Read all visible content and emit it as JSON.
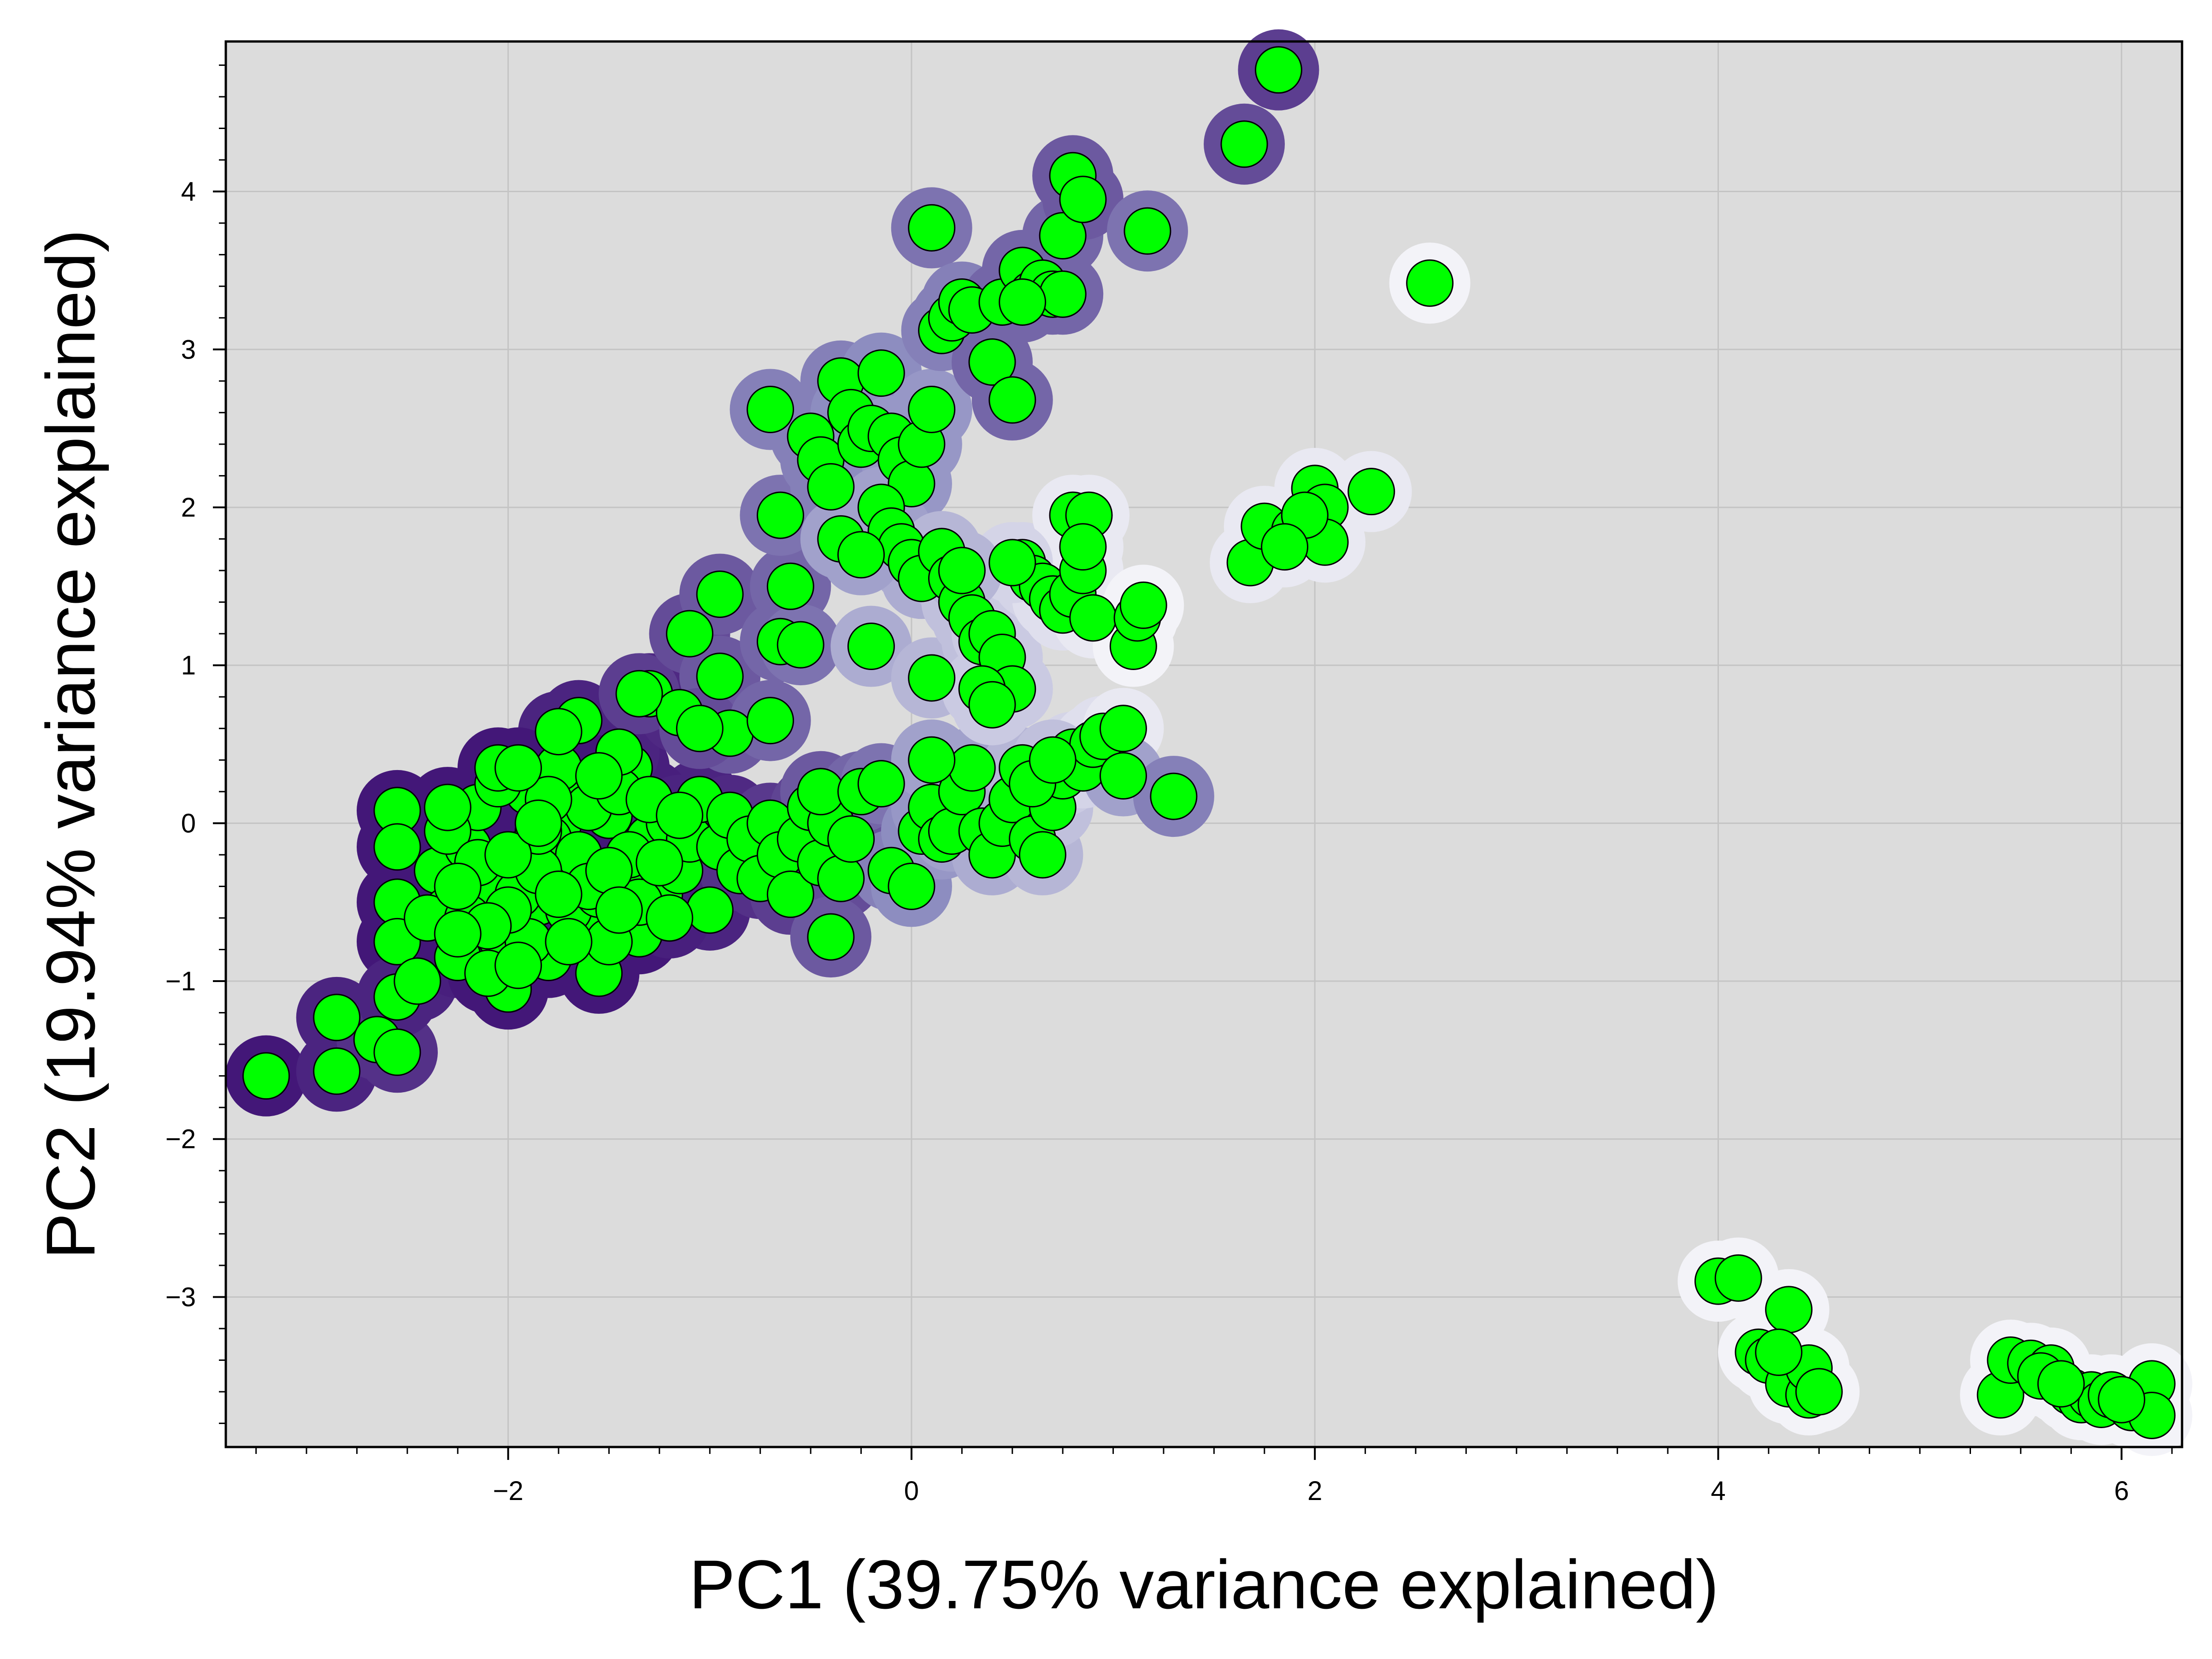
{
  "chart_data": {
    "type": "scatter",
    "title": "",
    "xlabel": "PC1 (39.75% variance explained)",
    "ylabel": "PC2 (19.94% variance explained)",
    "xlim": [
      -3.4,
      6.3
    ],
    "ylim": [
      -3.95,
      4.95
    ],
    "x_ticks": [
      -2,
      0,
      2,
      4,
      6
    ],
    "y_ticks": [
      -3,
      -2,
      -1,
      0,
      1,
      2,
      3,
      4
    ],
    "x_tick_labels": [
      "−2",
      "0",
      "2",
      "4",
      "6"
    ],
    "y_tick_labels": [
      "−3",
      "−2",
      "−1",
      "0",
      "1",
      "2",
      "3",
      "4"
    ],
    "grid": true,
    "legend": "none",
    "colors": {
      "background": "#dcdcdc",
      "grid": "#c4c4c4",
      "marker_fill": "#00ff00",
      "marker_edge": "#000000",
      "halo_dark": "#3b0a70",
      "halo_mid": "#8d8dc0",
      "halo_light": "#f3f3f8"
    },
    "points": [
      [
        -3.2,
        -1.6,
        0.05
      ],
      [
        -2.85,
        -1.23,
        0.1
      ],
      [
        -2.85,
        -1.57,
        0.1
      ],
      [
        -2.65,
        -1.37,
        0.15
      ],
      [
        -2.55,
        -1.45,
        0.15
      ],
      [
        -2.55,
        0.08,
        0.05
      ],
      [
        -2.55,
        -0.15,
        0.05
      ],
      [
        -2.55,
        -0.5,
        0.05
      ],
      [
        -2.55,
        -0.75,
        0.05
      ],
      [
        -2.55,
        -1.1,
        0.1
      ],
      [
        -2.45,
        -1.0,
        0.1
      ],
      [
        -2.35,
        -0.3,
        0.05
      ],
      [
        -2.3,
        -0.55,
        0.05
      ],
      [
        -2.25,
        -0.85,
        0.08
      ],
      [
        -2.2,
        -0.15,
        0.05
      ],
      [
        -2.15,
        0.1,
        0.05
      ],
      [
        -2.1,
        -0.4,
        0.05
      ],
      [
        -2.05,
        -0.7,
        0.05
      ],
      [
        -2.0,
        -1.05,
        0.05
      ],
      [
        -1.95,
        -0.2,
        0.05
      ],
      [
        -1.9,
        0.2,
        0.05
      ],
      [
        -1.85,
        -0.5,
        0.05
      ],
      [
        -1.8,
        -0.85,
        0.05
      ],
      [
        -1.75,
        0.0,
        0.05
      ],
      [
        -1.7,
        -0.3,
        0.05
      ],
      [
        -1.65,
        0.25,
        0.05
      ],
      [
        -1.6,
        -0.6,
        0.05
      ],
      [
        -1.55,
        -0.95,
        0.05
      ],
      [
        -1.5,
        0.05,
        0.05
      ],
      [
        -1.45,
        -0.35,
        0.05
      ],
      [
        -1.4,
        0.35,
        0.08
      ],
      [
        -1.35,
        -0.7,
        0.05
      ],
      [
        -1.3,
        -0.1,
        0.08
      ],
      [
        -1.25,
        -0.45,
        0.08
      ],
      [
        -1.2,
        0.0,
        0.1
      ],
      [
        -1.15,
        -0.3,
        0.1
      ],
      [
        -1.1,
        -0.1,
        0.1
      ],
      [
        -1.05,
        0.15,
        0.1
      ],
      [
        -1.0,
        -0.55,
        0.1
      ],
      [
        -2.4,
        -0.6,
        0.05
      ],
      [
        -2.3,
        -0.05,
        0.05
      ],
      [
        -2.2,
        -0.6,
        0.05
      ],
      [
        -2.1,
        -0.95,
        0.05
      ],
      [
        -2.05,
        0.25,
        0.05
      ],
      [
        -1.95,
        -0.45,
        0.05
      ],
      [
        -1.9,
        -0.75,
        0.05
      ],
      [
        -1.8,
        -0.1,
        0.05
      ],
      [
        -1.75,
        0.35,
        0.05
      ],
      [
        -1.7,
        -0.55,
        0.05
      ],
      [
        -1.65,
        -0.2,
        0.05
      ],
      [
        -1.6,
        0.1,
        0.05
      ],
      [
        -1.55,
        -0.45,
        0.05
      ],
      [
        -1.5,
        -0.75,
        0.05
      ],
      [
        -1.45,
        0.2,
        0.05
      ],
      [
        -1.4,
        -0.2,
        0.05
      ],
      [
        -1.35,
        -0.5,
        0.05
      ],
      [
        -1.3,
        0.15,
        0.08
      ],
      [
        -1.25,
        -0.25,
        0.08
      ],
      [
        -1.2,
        -0.6,
        0.08
      ],
      [
        -1.15,
        0.05,
        0.1
      ],
      [
        -2.15,
        -0.25,
        0.05
      ],
      [
        -2.0,
        -0.55,
        0.05
      ],
      [
        -1.85,
        -0.3,
        0.05
      ],
      [
        -1.8,
        0.15,
        0.05
      ],
      [
        -1.7,
        -0.75,
        0.05
      ],
      [
        -1.95,
        -0.9,
        0.05
      ],
      [
        -2.1,
        -0.65,
        0.05
      ],
      [
        -2.25,
        -0.4,
        0.05
      ],
      [
        -1.6,
        -0.4,
        0.05
      ],
      [
        -1.5,
        -0.3,
        0.05
      ],
      [
        -2.3,
        0.1,
        0.05
      ],
      [
        -1.45,
        -0.55,
        0.05
      ],
      [
        -1.85,
        -0.05,
        0.05
      ],
      [
        -2.0,
        -0.2,
        0.05
      ],
      [
        -1.75,
        -0.45,
        0.05
      ],
      [
        -1.65,
        0.65,
        0.1
      ],
      [
        -1.75,
        0.58,
        0.1
      ],
      [
        -1.45,
        0.45,
        0.1
      ],
      [
        -1.3,
        0.82,
        0.12
      ],
      [
        -1.15,
        0.7,
        0.12
      ],
      [
        -2.05,
        0.35,
        0.05
      ],
      [
        -1.95,
        0.35,
        0.05
      ],
      [
        -1.55,
        0.3,
        0.05
      ],
      [
        -1.85,
        0.0,
        0.05
      ],
      [
        -2.25,
        -0.7,
        0.05
      ],
      [
        -0.95,
        -0.15,
        0.12
      ],
      [
        -0.9,
        0.05,
        0.12
      ],
      [
        -0.85,
        -0.3,
        0.15
      ],
      [
        -0.8,
        -0.1,
        0.15
      ],
      [
        -0.75,
        -0.35,
        0.15
      ],
      [
        -0.7,
        0.0,
        0.18
      ],
      [
        -0.65,
        -0.2,
        0.18
      ],
      [
        -0.6,
        -0.45,
        0.2
      ],
      [
        -0.55,
        -0.1,
        0.2
      ],
      [
        -0.5,
        0.1,
        0.22
      ],
      [
        -0.45,
        -0.25,
        0.22
      ],
      [
        -0.4,
        0.0,
        0.25
      ],
      [
        -0.35,
        -0.35,
        0.25
      ],
      [
        -0.3,
        -0.1,
        0.28
      ],
      [
        -0.4,
        -0.72,
        0.3
      ],
      [
        -0.45,
        0.2,
        0.3
      ],
      [
        -0.25,
        0.2,
        0.35
      ],
      [
        -0.15,
        0.25,
        0.4
      ],
      [
        -0.1,
        -0.3,
        0.45
      ],
      [
        0.0,
        -0.4,
        0.5
      ],
      [
        0.05,
        -0.05,
        0.5
      ],
      [
        0.1,
        0.1,
        0.55
      ],
      [
        0.15,
        -0.1,
        0.55
      ],
      [
        0.2,
        -0.05,
        0.6
      ],
      [
        0.25,
        0.2,
        0.6
      ],
      [
        0.3,
        0.35,
        0.6
      ],
      [
        0.35,
        -0.05,
        0.6
      ],
      [
        0.4,
        -0.2,
        0.65
      ],
      [
        0.45,
        0.0,
        0.65
      ],
      [
        0.5,
        0.15,
        0.65
      ],
      [
        0.55,
        0.35,
        0.7
      ],
      [
        0.6,
        -0.1,
        0.7
      ],
      [
        0.65,
        -0.2,
        0.7
      ],
      [
        0.7,
        0.1,
        0.75
      ],
      [
        0.75,
        0.3,
        0.8
      ],
      [
        0.8,
        0.45,
        0.85
      ],
      [
        0.85,
        0.35,
        0.85
      ],
      [
        0.9,
        0.5,
        0.9
      ],
      [
        0.95,
        0.55,
        0.9
      ],
      [
        1.05,
        0.6,
        0.95
      ],
      [
        1.05,
        0.3,
        0.6
      ],
      [
        1.3,
        0.17,
        0.45
      ],
      [
        0.1,
        0.4,
        0.6
      ],
      [
        0.6,
        0.25,
        0.7
      ],
      [
        0.7,
        0.4,
        0.75
      ],
      [
        -1.35,
        0.82,
        0.2
      ],
      [
        -1.1,
        1.2,
        0.25
      ],
      [
        -0.95,
        1.45,
        0.3
      ],
      [
        -0.95,
        0.93,
        0.3
      ],
      [
        -0.9,
        0.57,
        0.3
      ],
      [
        -1.05,
        0.6,
        0.25
      ],
      [
        -0.7,
        0.65,
        0.35
      ],
      [
        -0.65,
        1.15,
        0.35
      ],
      [
        -0.6,
        1.5,
        0.35
      ],
      [
        -0.55,
        1.13,
        0.4
      ],
      [
        -0.65,
        1.95,
        0.4
      ],
      [
        -0.7,
        2.62,
        0.45
      ],
      [
        -0.5,
        2.45,
        0.45
      ],
      [
        -0.45,
        2.3,
        0.45
      ],
      [
        -0.4,
        2.13,
        0.45
      ],
      [
        -0.35,
        2.8,
        0.45
      ],
      [
        -0.3,
        2.6,
        0.5
      ],
      [
        -0.25,
        2.4,
        0.5
      ],
      [
        -0.2,
        2.5,
        0.5
      ],
      [
        -0.15,
        2.85,
        0.5
      ],
      [
        -0.1,
        2.45,
        0.55
      ],
      [
        -0.05,
        2.3,
        0.55
      ],
      [
        0.0,
        2.15,
        0.55
      ],
      [
        0.05,
        2.4,
        0.55
      ],
      [
        0.1,
        2.62,
        0.55
      ],
      [
        -0.15,
        2.0,
        0.6
      ],
      [
        -0.1,
        1.85,
        0.6
      ],
      [
        -0.05,
        1.75,
        0.6
      ],
      [
        0.0,
        1.65,
        0.65
      ],
      [
        0.05,
        1.55,
        0.65
      ],
      [
        -0.35,
        1.8,
        0.6
      ],
      [
        -0.25,
        1.7,
        0.6
      ],
      [
        -0.2,
        1.12,
        0.65
      ],
      [
        0.1,
        0.92,
        0.7
      ],
      [
        0.15,
        1.72,
        0.7
      ],
      [
        0.2,
        1.55,
        0.7
      ],
      [
        0.25,
        1.4,
        0.75
      ],
      [
        0.3,
        1.3,
        0.75
      ],
      [
        0.35,
        1.15,
        0.75
      ],
      [
        0.4,
        1.2,
        0.8
      ],
      [
        0.45,
        1.05,
        0.8
      ],
      [
        0.5,
        0.85,
        0.8
      ],
      [
        0.35,
        0.85,
        0.8
      ],
      [
        0.4,
        0.75,
        0.8
      ],
      [
        0.55,
        1.65,
        0.85
      ],
      [
        0.6,
        1.55,
        0.85
      ],
      [
        0.65,
        1.5,
        0.85
      ],
      [
        0.7,
        1.42,
        0.9
      ],
      [
        0.75,
        1.35,
        0.9
      ],
      [
        0.8,
        1.45,
        0.95
      ],
      [
        0.85,
        1.6,
        0.95
      ],
      [
        0.9,
        1.3,
        0.95
      ],
      [
        0.8,
        1.95,
        0.95
      ],
      [
        0.88,
        1.95,
        0.95
      ],
      [
        1.1,
        1.12,
        1.0
      ],
      [
        1.12,
        1.3,
        1.0
      ],
      [
        1.15,
        1.38,
        1.0
      ],
      [
        0.85,
        1.75,
        0.95
      ],
      [
        0.5,
        1.65,
        0.85
      ],
      [
        0.25,
        1.6,
        0.7
      ],
      [
        0.1,
        3.77,
        0.4
      ],
      [
        0.15,
        3.12,
        0.45
      ],
      [
        0.2,
        3.2,
        0.45
      ],
      [
        0.25,
        3.3,
        0.45
      ],
      [
        0.3,
        3.25,
        0.45
      ],
      [
        0.4,
        2.92,
        0.35
      ],
      [
        0.45,
        3.3,
        0.35
      ],
      [
        0.5,
        2.68,
        0.35
      ],
      [
        0.55,
        3.5,
        0.35
      ],
      [
        0.6,
        3.35,
        0.35
      ],
      [
        0.65,
        3.42,
        0.35
      ],
      [
        0.7,
        3.35,
        0.35
      ],
      [
        0.75,
        3.72,
        0.35
      ],
      [
        0.8,
        4.1,
        0.3
      ],
      [
        0.85,
        3.95,
        0.3
      ],
      [
        1.17,
        3.75,
        0.4
      ],
      [
        1.65,
        4.3,
        0.25
      ],
      [
        1.82,
        4.77,
        0.2
      ],
      [
        0.75,
        3.35,
        0.35
      ],
      [
        0.55,
        3.3,
        0.35
      ],
      [
        1.68,
        1.65,
        0.95
      ],
      [
        1.75,
        1.88,
        0.95
      ],
      [
        1.9,
        1.85,
        0.95
      ],
      [
        2.0,
        2.12,
        0.95
      ],
      [
        2.05,
        2.0,
        0.95
      ],
      [
        2.05,
        1.78,
        0.95
      ],
      [
        2.28,
        2.1,
        0.95
      ],
      [
        2.57,
        3.42,
        1.0
      ],
      [
        1.95,
        1.95,
        0.95
      ],
      [
        1.85,
        1.75,
        0.95
      ],
      [
        4.0,
        -2.9,
        1.0
      ],
      [
        4.1,
        -2.88,
        1.0
      ],
      [
        4.2,
        -3.35,
        1.0
      ],
      [
        4.25,
        -3.4,
        1.0
      ],
      [
        4.35,
        -3.08,
        1.0
      ],
      [
        4.35,
        -3.55,
        1.0
      ],
      [
        4.45,
        -3.62,
        1.0
      ],
      [
        4.45,
        -3.45,
        1.0
      ],
      [
        4.5,
        -3.6,
        1.0
      ],
      [
        4.3,
        -3.35,
        1.0
      ],
      [
        5.4,
        -3.62,
        1.0
      ],
      [
        5.45,
        -3.4,
        1.0
      ],
      [
        5.55,
        -3.42,
        1.0
      ],
      [
        5.65,
        -3.45,
        1.0
      ],
      [
        5.75,
        -3.6,
        1.0
      ],
      [
        5.8,
        -3.65,
        1.0
      ],
      [
        5.85,
        -3.62,
        1.0
      ],
      [
        5.9,
        -3.68,
        1.0
      ],
      [
        5.95,
        -3.62,
        1.0
      ],
      [
        6.05,
        -3.7,
        1.0
      ],
      [
        6.15,
        -3.55,
        1.0
      ],
      [
        6.15,
        -3.75,
        1.0
      ],
      [
        5.6,
        -3.5,
        1.0
      ],
      [
        5.7,
        -3.55,
        1.0
      ],
      [
        6.0,
        -3.65,
        1.0
      ]
    ]
  }
}
